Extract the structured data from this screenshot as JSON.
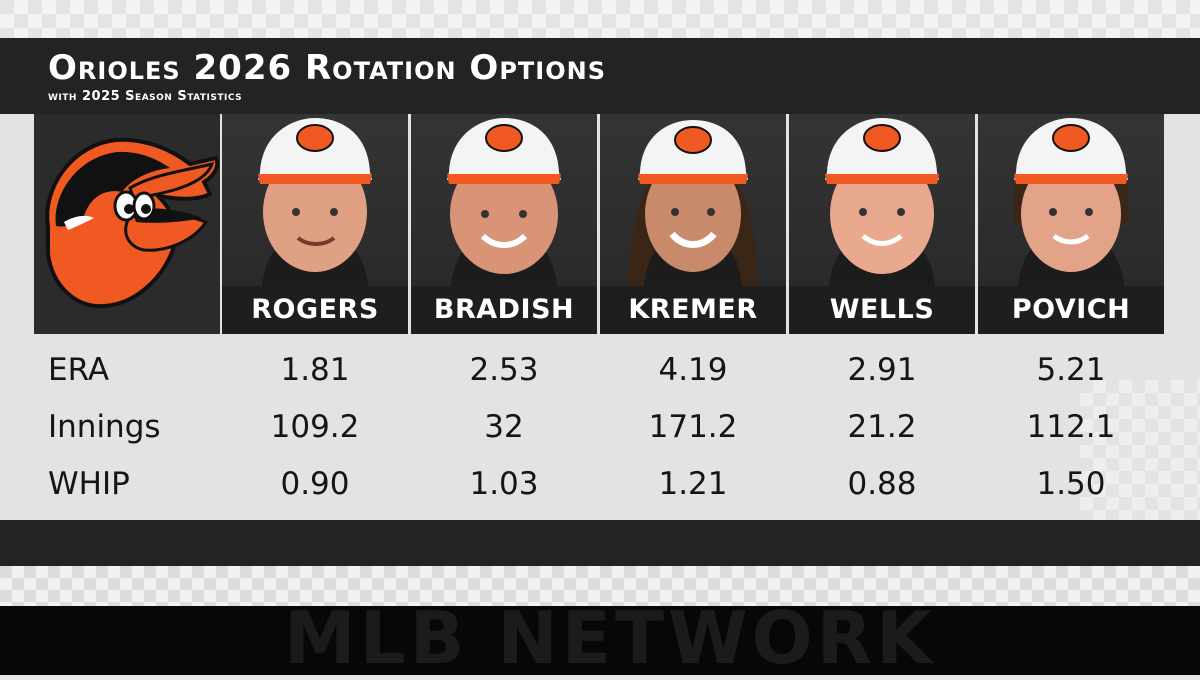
{
  "title": "Orioles 2026 Rotation Options",
  "subtitle": "with 2025 Season Statistics",
  "watermark": "MLB NETWORK",
  "colors": {
    "orange": "#f05a22",
    "dark": "#232323",
    "panel": "#e3e3e3"
  },
  "team_logo": "orioles-bird-logo",
  "players": [
    {
      "name": "ROGERS"
    },
    {
      "name": "BRADISH"
    },
    {
      "name": "KREMER"
    },
    {
      "name": "WELLS"
    },
    {
      "name": "POVICH"
    }
  ],
  "stats": [
    {
      "label": "ERA",
      "values": [
        "1.81",
        "2.53",
        "4.19",
        "2.91",
        "5.21"
      ]
    },
    {
      "label": "Innings",
      "values": [
        "109.2",
        "32",
        "171.2",
        "21.2",
        "112.1"
      ]
    },
    {
      "label": "WHIP",
      "values": [
        "0.90",
        "1.03",
        "1.21",
        "0.88",
        "1.50"
      ]
    }
  ]
}
